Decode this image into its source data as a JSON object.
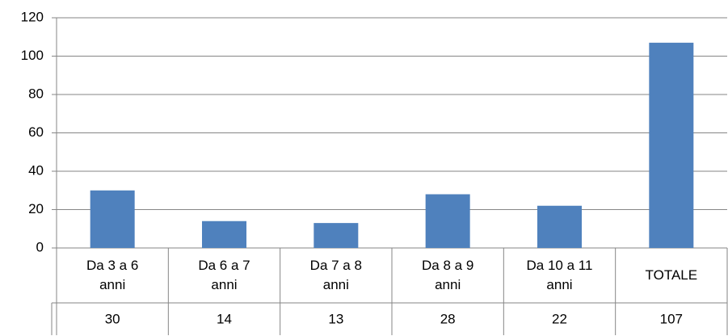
{
  "chart_data": {
    "type": "bar",
    "categories": [
      "Da 3 a 6 anni",
      "Da 6 a 7 anni",
      "Da 7 a 8 anni",
      "Da 8 a 9 anni",
      "Da 10 a 11 anni",
      "TOTALE"
    ],
    "values": [
      30,
      14,
      13,
      28,
      22,
      107
    ],
    "color": "#4f81bd",
    "ylim": [
      0,
      120
    ],
    "yticks": [
      0,
      20,
      40,
      60,
      80,
      100,
      120
    ],
    "grid": true,
    "data_table": true
  }
}
